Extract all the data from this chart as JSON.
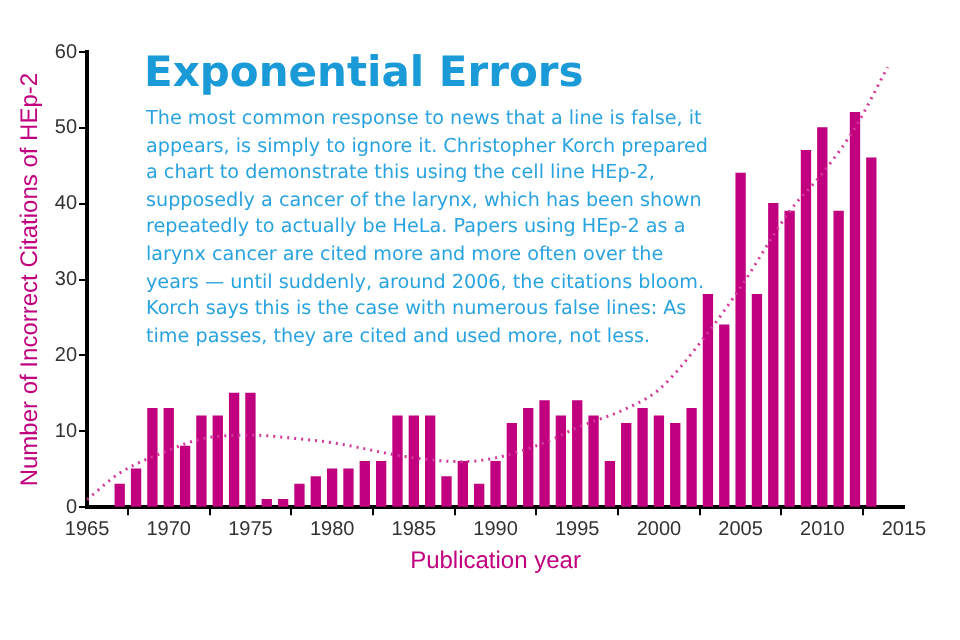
{
  "chart_data": {
    "type": "bar",
    "title": "Exponential Errors",
    "annotations": [
      "The most common response to news that a line is false, it appears, is simply to ignore it. Christopher Korch prepared a chart to demonstrate this using the cell line HEp-2, supposedly a cancer of the larynx, which has been shown repeatedly to actually be HeLa. Papers using HEp-2 as a larynx cancer are cited more and more often over the years — until suddenly, around 2006, the citations bloom. Korch says this is the case with numerous false lines: As time passes, they are cited and used more, not less."
    ],
    "xlabel": "Publication year",
    "ylabel": "Number of Incorrect Citations of HEp-2",
    "x": [
      1967,
      1968,
      1969,
      1970,
      1971,
      1972,
      1973,
      1974,
      1975,
      1976,
      1977,
      1978,
      1979,
      1980,
      1981,
      1982,
      1983,
      1984,
      1985,
      1986,
      1987,
      1988,
      1989,
      1990,
      1991,
      1992,
      1993,
      1994,
      1995,
      1996,
      1997,
      1998,
      1999,
      2000,
      2001,
      2002,
      2003,
      2004,
      2005,
      2006,
      2007,
      2008,
      2009,
      2010,
      2011,
      2012,
      2013
    ],
    "series": [
      {
        "color": "#c0007f",
        "values": [
          3,
          5,
          13,
          13,
          8,
          12,
          12,
          15,
          15,
          1,
          1,
          3,
          4,
          5,
          5,
          6,
          6,
          12,
          12,
          12,
          4,
          6,
          3,
          6,
          11,
          13,
          14,
          12,
          14,
          12,
          6,
          11,
          13,
          12,
          11,
          13,
          28,
          24,
          44,
          28,
          40,
          39,
          47,
          50,
          39,
          52,
          46
        ]
      },
      {
        "type": "line",
        "color": "#d4389a",
        "line_style": "dotted",
        "marker": "none",
        "x": [
          1965,
          1967,
          1970,
          1972,
          1975,
          1978,
          1980,
          1985,
          1988,
          1990,
          1993,
          1995,
          1998,
          2000,
          2003,
          2005,
          2008,
          2010,
          2012,
          2014
        ],
        "values": [
          1,
          4.5,
          7.5,
          9,
          9.5,
          9,
          8.5,
          6.5,
          6,
          6.5,
          8.5,
          10.5,
          13,
          15.5,
          23,
          29,
          39,
          44,
          50,
          58
        ]
      }
    ],
    "xlim": [
      1965,
      2015
    ],
    "xticks": [
      1965,
      1970,
      1975,
      1980,
      1985,
      1990,
      1995,
      2000,
      2005,
      2010,
      2015
    ],
    "ylim": [
      0,
      60
    ],
    "yticks": [
      0,
      10,
      20,
      30,
      40,
      50,
      60
    ],
    "grid": false,
    "legend": false
  }
}
